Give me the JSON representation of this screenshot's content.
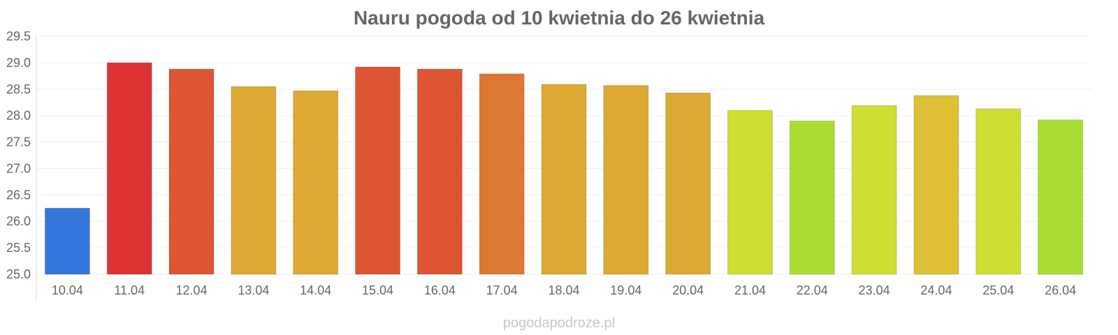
{
  "chart_data": {
    "type": "bar",
    "title": "Nauru pogoda od 10 kwietnia do 26 kwietnia",
    "xlabel": "",
    "ylabel": "",
    "ylim": [
      25.0,
      29.5
    ],
    "yticks": [
      "25.0",
      "25.5",
      "26.0",
      "26.5",
      "27.0",
      "27.5",
      "28.0",
      "28.5",
      "29.0",
      "29.5"
    ],
    "categories": [
      "10.04",
      "11.04",
      "12.04",
      "13.04",
      "14.04",
      "15.04",
      "16.04",
      "17.04",
      "18.04",
      "19.04",
      "20.04",
      "21.04",
      "22.04",
      "23.04",
      "24.04",
      "25.04",
      "26.04"
    ],
    "values": [
      26.25,
      29.0,
      28.88,
      28.55,
      28.47,
      28.92,
      28.88,
      28.79,
      28.59,
      28.57,
      28.43,
      28.1,
      27.9,
      28.19,
      28.38,
      28.13,
      27.92
    ],
    "colors": [
      "#3377dd",
      "#dd3333",
      "#dd5533",
      "#dda833",
      "#dda833",
      "#dd5533",
      "#dd5533",
      "#dd7733",
      "#dda833",
      "#dda833",
      "#dda833",
      "#d0dd33",
      "#aadd33",
      "#d0dd33",
      "#ddc033",
      "#d0dd33",
      "#aadd33"
    ],
    "grid": true,
    "legend": "none"
  },
  "watermark": "pogodapodroze.pl"
}
